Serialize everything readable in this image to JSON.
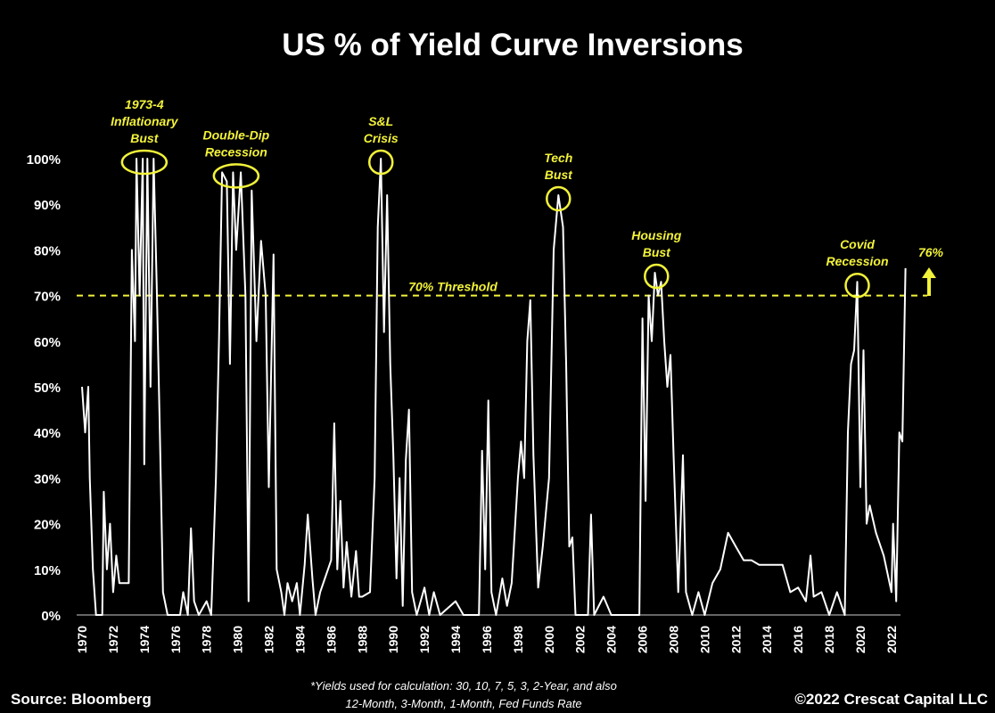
{
  "colors": {
    "background": "#000000",
    "line": "#ffffff",
    "accent": "#f2f23a"
  },
  "chart_data": {
    "type": "line",
    "title": "US % of Yield Curve Inversions",
    "xlabel": "",
    "ylabel": "",
    "xlim": [
      1970,
      2023
    ],
    "ylim": [
      0,
      100
    ],
    "x_ticks": [
      "1970",
      "1972",
      "1974",
      "1976",
      "1978",
      "1980",
      "1982",
      "1984",
      "1986",
      "1988",
      "1990",
      "1992",
      "1994",
      "1996",
      "1998",
      "2000",
      "2002",
      "2004",
      "2006",
      "2008",
      "2010",
      "2012",
      "2014",
      "2016",
      "2018",
      "2020",
      "2022"
    ],
    "y_ticks": [
      "0%",
      "10%",
      "20%",
      "30%",
      "40%",
      "50%",
      "60%",
      "70%",
      "80%",
      "90%",
      "100%"
    ],
    "grid": false,
    "threshold": {
      "value": 70,
      "label": "70% Threshold"
    },
    "latest": {
      "label": "76%",
      "value": 76
    },
    "annotations": [
      {
        "label": [
          "1973-4",
          "Inflationary",
          "Bust"
        ],
        "x": 1974.0,
        "y": 100
      },
      {
        "label": [
          "Double-Dip",
          "Recession"
        ],
        "x": 1979.9,
        "y": 97
      },
      {
        "label": [
          "S&L",
          "Crisis"
        ],
        "x": 1989.2,
        "y": 100
      },
      {
        "label": [
          "Tech",
          "Bust"
        ],
        "x": 2000.6,
        "y": 92
      },
      {
        "label": [
          "Housing",
          "Bust"
        ],
        "x": 2006.9,
        "y": 75
      },
      {
        "label": [
          "Covid",
          "Recession"
        ],
        "x": 2019.8,
        "y": 73
      }
    ],
    "series": [
      {
        "name": "US % of Yield Curve Inversions",
        "points": [
          [
            1970.0,
            50
          ],
          [
            1970.2,
            40
          ],
          [
            1970.4,
            50
          ],
          [
            1970.5,
            30
          ],
          [
            1970.7,
            10
          ],
          [
            1970.9,
            0
          ],
          [
            1971.3,
            0
          ],
          [
            1971.4,
            27
          ],
          [
            1971.6,
            10
          ],
          [
            1971.8,
            20
          ],
          [
            1972.0,
            5
          ],
          [
            1972.2,
            13
          ],
          [
            1972.4,
            7
          ],
          [
            1972.8,
            7
          ],
          [
            1973.0,
            7
          ],
          [
            1973.2,
            80
          ],
          [
            1973.4,
            60
          ],
          [
            1973.5,
            100
          ],
          [
            1973.7,
            70
          ],
          [
            1973.9,
            100
          ],
          [
            1974.0,
            33
          ],
          [
            1974.2,
            100
          ],
          [
            1974.4,
            50
          ],
          [
            1974.6,
            100
          ],
          [
            1974.8,
            72
          ],
          [
            1975.0,
            40
          ],
          [
            1975.2,
            5
          ],
          [
            1975.5,
            0
          ],
          [
            1976.3,
            0
          ],
          [
            1976.5,
            5
          ],
          [
            1976.8,
            0
          ],
          [
            1977.0,
            19
          ],
          [
            1977.2,
            3
          ],
          [
            1977.5,
            0
          ],
          [
            1978.0,
            3
          ],
          [
            1978.3,
            0
          ],
          [
            1978.6,
            30
          ],
          [
            1978.8,
            60
          ],
          [
            1979.0,
            97
          ],
          [
            1979.3,
            95
          ],
          [
            1979.5,
            55
          ],
          [
            1979.7,
            97
          ],
          [
            1979.9,
            80
          ],
          [
            1980.2,
            97
          ],
          [
            1980.5,
            70
          ],
          [
            1980.7,
            3
          ],
          [
            1980.9,
            93
          ],
          [
            1981.2,
            60
          ],
          [
            1981.5,
            82
          ],
          [
            1981.8,
            70
          ],
          [
            1982.0,
            28
          ],
          [
            1982.3,
            79
          ],
          [
            1982.5,
            10
          ],
          [
            1982.8,
            5
          ],
          [
            1983.0,
            0
          ],
          [
            1983.2,
            7
          ],
          [
            1983.5,
            3
          ],
          [
            1983.8,
            7
          ],
          [
            1984.0,
            0
          ],
          [
            1984.3,
            11
          ],
          [
            1984.5,
            22
          ],
          [
            1984.8,
            8
          ],
          [
            1985.0,
            0
          ],
          [
            1985.3,
            5
          ],
          [
            1985.6,
            8
          ],
          [
            1986.0,
            12
          ],
          [
            1986.2,
            42
          ],
          [
            1986.4,
            10
          ],
          [
            1986.6,
            25
          ],
          [
            1986.8,
            6
          ],
          [
            1987.0,
            16
          ],
          [
            1987.3,
            4
          ],
          [
            1987.6,
            14
          ],
          [
            1987.8,
            4
          ],
          [
            1988.0,
            4
          ],
          [
            1988.5,
            5
          ],
          [
            1988.8,
            30
          ],
          [
            1989.0,
            85
          ],
          [
            1989.2,
            100
          ],
          [
            1989.4,
            62
          ],
          [
            1989.6,
            92
          ],
          [
            1989.8,
            55
          ],
          [
            1990.0,
            35
          ],
          [
            1990.2,
            8
          ],
          [
            1990.4,
            30
          ],
          [
            1990.6,
            2
          ],
          [
            1990.8,
            34
          ],
          [
            1991.0,
            45
          ],
          [
            1991.2,
            5
          ],
          [
            1991.5,
            0
          ],
          [
            1992.0,
            6
          ],
          [
            1992.3,
            0
          ],
          [
            1992.6,
            5
          ],
          [
            1993.0,
            0
          ],
          [
            1994.0,
            3
          ],
          [
            1994.5,
            0
          ],
          [
            1995.5,
            0
          ],
          [
            1995.7,
            36
          ],
          [
            1995.9,
            10
          ],
          [
            1996.1,
            47
          ],
          [
            1996.3,
            5
          ],
          [
            1996.6,
            0
          ],
          [
            1997.0,
            8
          ],
          [
            1997.3,
            2
          ],
          [
            1997.6,
            7
          ],
          [
            1998.0,
            30
          ],
          [
            1998.2,
            38
          ],
          [
            1998.4,
            30
          ],
          [
            1998.6,
            60
          ],
          [
            1998.8,
            69
          ],
          [
            1999.0,
            35
          ],
          [
            1999.3,
            6
          ],
          [
            1999.6,
            15
          ],
          [
            2000.0,
            30
          ],
          [
            2000.3,
            80
          ],
          [
            2000.6,
            92
          ],
          [
            2000.9,
            85
          ],
          [
            2001.1,
            55
          ],
          [
            2001.3,
            15
          ],
          [
            2001.5,
            17
          ],
          [
            2001.7,
            0
          ],
          [
            2002.5,
            0
          ],
          [
            2002.7,
            22
          ],
          [
            2002.9,
            0
          ],
          [
            2003.5,
            4
          ],
          [
            2004.0,
            0
          ],
          [
            2005.8,
            0
          ],
          [
            2006.0,
            65
          ],
          [
            2006.2,
            25
          ],
          [
            2006.4,
            70
          ],
          [
            2006.6,
            60
          ],
          [
            2006.8,
            75
          ],
          [
            2007.0,
            70
          ],
          [
            2007.2,
            73
          ],
          [
            2007.4,
            60
          ],
          [
            2007.6,
            50
          ],
          [
            2007.8,
            57
          ],
          [
            2008.0,
            35
          ],
          [
            2008.3,
            5
          ],
          [
            2008.6,
            35
          ],
          [
            2008.8,
            5
          ],
          [
            2009.2,
            0
          ],
          [
            2009.6,
            5
          ],
          [
            2010.0,
            0
          ],
          [
            2010.5,
            7
          ],
          [
            2011.0,
            10
          ],
          [
            2011.5,
            18
          ],
          [
            2012.0,
            15
          ],
          [
            2012.5,
            12
          ],
          [
            2013.0,
            12
          ],
          [
            2013.5,
            11
          ],
          [
            2014.0,
            11
          ],
          [
            2015.0,
            11
          ],
          [
            2015.5,
            5
          ],
          [
            2016.0,
            6
          ],
          [
            2016.5,
            3
          ],
          [
            2016.8,
            13
          ],
          [
            2017.0,
            4
          ],
          [
            2017.5,
            5
          ],
          [
            2018.0,
            0
          ],
          [
            2018.5,
            5
          ],
          [
            2019.0,
            0
          ],
          [
            2019.2,
            40
          ],
          [
            2019.4,
            55
          ],
          [
            2019.6,
            58
          ],
          [
            2019.8,
            73
          ],
          [
            2020.0,
            28
          ],
          [
            2020.2,
            58
          ],
          [
            2020.4,
            20
          ],
          [
            2020.6,
            24
          ],
          [
            2021.0,
            18
          ],
          [
            2021.5,
            13
          ],
          [
            2022.0,
            5
          ],
          [
            2022.1,
            20
          ],
          [
            2022.3,
            3
          ],
          [
            2022.5,
            40
          ],
          [
            2022.7,
            38
          ],
          [
            2022.9,
            76
          ]
        ]
      }
    ]
  },
  "footer": {
    "source": "Source: Bloomberg",
    "note_line1": "*Yields used for calculation: 30, 10, 7, 5, 3, 2-Year, and also",
    "note_line2": "12-Month, 3-Month, 1-Month, Fed Funds Rate",
    "copyright": "©2022 Crescat Capital LLC"
  }
}
